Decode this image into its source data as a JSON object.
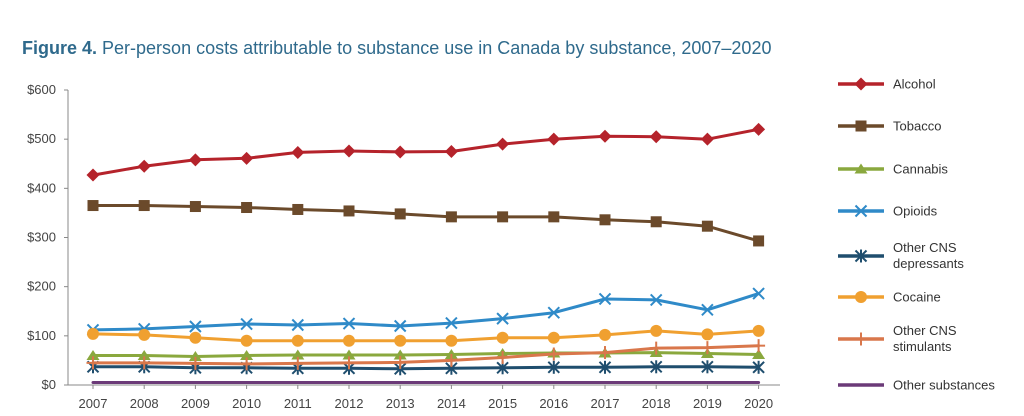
{
  "chart_data": {
    "type": "line",
    "title_prefix": "Figure 4.",
    "title": "Per-person costs attributable to substance use in Canada by substance, 2007–2020",
    "xlabel": "",
    "ylabel": "",
    "x": [
      "2007",
      "2008",
      "2009",
      "2010",
      "2011",
      "2012",
      "2013",
      "2014",
      "2015",
      "2016",
      "2017",
      "2018",
      "2019",
      "2020"
    ],
    "yticks": [
      {
        "value": 0,
        "label": "$0"
      },
      {
        "value": 100,
        "label": "$100"
      },
      {
        "value": 200,
        "label": "$200"
      },
      {
        "value": 300,
        "label": "$300"
      },
      {
        "value": 400,
        "label": "$400"
      },
      {
        "value": 500,
        "label": "$500"
      },
      {
        "value": 600,
        "label": "$600"
      }
    ],
    "ylim": [
      0,
      600
    ],
    "grid": false,
    "legend_position": "right",
    "series": [
      {
        "name_lines": [
          "Alcohol"
        ],
        "color": "#b5232b",
        "marker": "diamond",
        "values": [
          427,
          445,
          458,
          461,
          473,
          476,
          474,
          475,
          490,
          500,
          506,
          505,
          500,
          520
        ]
      },
      {
        "name_lines": [
          "Tobacco"
        ],
        "color": "#6b4a2b",
        "marker": "square",
        "values": [
          365,
          365,
          363,
          361,
          357,
          354,
          348,
          342,
          342,
          342,
          336,
          332,
          323,
          293
        ]
      },
      {
        "name_lines": [
          "Cannabis"
        ],
        "color": "#8aa83e",
        "marker": "triangle",
        "values": [
          60,
          60,
          58,
          60,
          61,
          61,
          61,
          62,
          64,
          65,
          65,
          66,
          64,
          62
        ]
      },
      {
        "name_lines": [
          "Opioids"
        ],
        "color": "#2f8ac8",
        "marker": "x",
        "values": [
          112,
          114,
          119,
          124,
          122,
          125,
          120,
          126,
          135,
          147,
          175,
          173,
          153,
          186
        ]
      },
      {
        "name_lines": [
          "Other CNS",
          "depressants"
        ],
        "color": "#1f4e6e",
        "marker": "asterisk",
        "values": [
          37,
          37,
          35,
          35,
          34,
          34,
          33,
          34,
          35,
          36,
          36,
          37,
          37,
          36
        ]
      },
      {
        "name_lines": [
          "Cocaine"
        ],
        "color": "#f0a030",
        "marker": "circle",
        "values": [
          104,
          102,
          96,
          90,
          90,
          90,
          90,
          90,
          96,
          96,
          102,
          110,
          103,
          110
        ]
      },
      {
        "name_lines": [
          "Other CNS",
          "stimulants"
        ],
        "color": "#d9774b",
        "marker": "plus",
        "values": [
          45,
          45,
          44,
          43,
          44,
          45,
          46,
          50,
          56,
          63,
          66,
          75,
          76,
          80
        ]
      },
      {
        "name_lines": [
          "Other substances"
        ],
        "color": "#6b3a78",
        "marker": "none",
        "values": [
          5,
          5,
          5,
          5,
          5,
          5,
          5,
          5,
          5,
          5,
          5,
          5,
          5,
          5
        ]
      }
    ]
  }
}
